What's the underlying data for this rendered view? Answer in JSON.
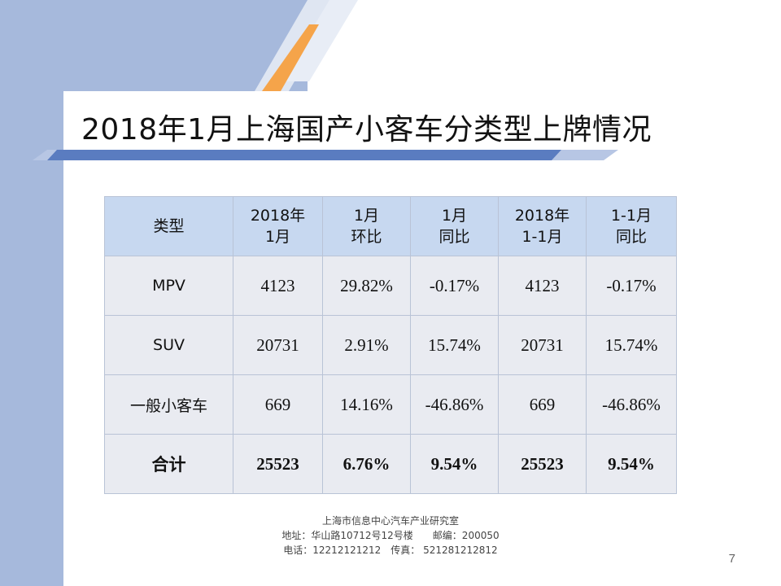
{
  "slide": {
    "title": "2018年1月上海国产小客车分类型上牌情况",
    "page_number": "7"
  },
  "table": {
    "headers": [
      [
        "类型"
      ],
      [
        "2018年",
        "1月"
      ],
      [
        "1月",
        "环比"
      ],
      [
        "1月",
        "同比"
      ],
      [
        "2018年",
        "1-1月"
      ],
      [
        "1-1月",
        "同比"
      ]
    ],
    "rows": [
      [
        "MPV",
        "4123",
        "29.82%",
        "-0.17%",
        "4123",
        "-0.17%"
      ],
      [
        "SUV",
        "20731",
        "2.91%",
        "15.74%",
        "20731",
        "15.74%"
      ],
      [
        "一般小客车",
        "669",
        "14.16%",
        "-46.86%",
        "669",
        "-46.86%"
      ],
      [
        "合计",
        "25523",
        "6.76%",
        "9.54%",
        "25523",
        "9.54%"
      ]
    ]
  },
  "footer": {
    "org": "上海市信息中心汽车产业研究室",
    "address": "地址：华山路10712号12号楼　　邮编：200050",
    "contact": "电话：12212121212　传真：  521281212812"
  },
  "colors": {
    "band": "#a6b9dc",
    "accent_orange": "#f5a44a",
    "stripe_blue": "#5a7cc0",
    "header_fill": "#c7d8f0",
    "cell_fill": "#e9ebf1"
  }
}
